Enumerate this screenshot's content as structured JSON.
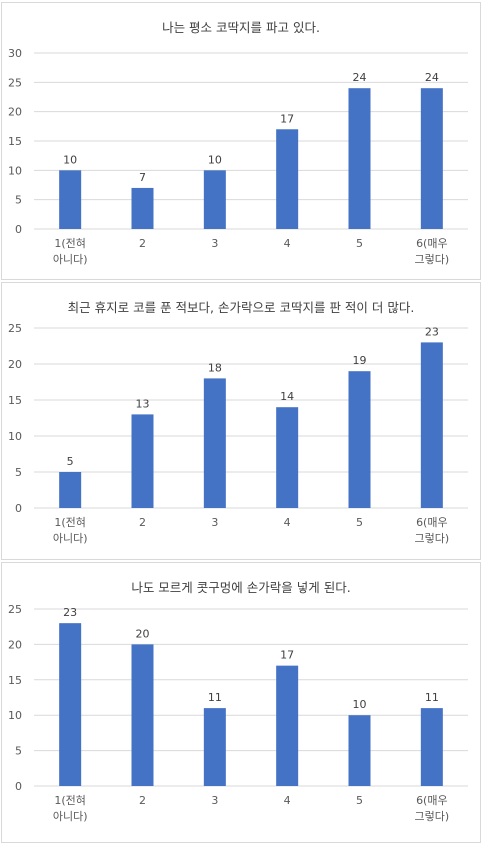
{
  "colors": {
    "bar": "#4472c4",
    "grid": "#d9d9d9",
    "text": "#595959",
    "title": "#404040"
  },
  "chart_data": [
    {
      "type": "bar",
      "title": "나는 평소 코딱지를 파고 있다.",
      "categories": [
        "1(전혀 아니다)",
        "2",
        "3",
        "4",
        "5",
        "6(매우 그렇다)"
      ],
      "category_lines": [
        [
          "1(전혀",
          "아니다)"
        ],
        [
          "2"
        ],
        [
          "3"
        ],
        [
          "4"
        ],
        [
          "5"
        ],
        [
          "6(매우",
          "그렇다)"
        ]
      ],
      "values": [
        10,
        7,
        10,
        17,
        24,
        24
      ],
      "ylim": [
        0,
        30
      ],
      "yticks": [
        0,
        5,
        10,
        15,
        20,
        25,
        30
      ],
      "grid": true,
      "data_labels": true
    },
    {
      "type": "bar",
      "title": "최근 휴지로 코를 푼 적보다, 손가락으로 코딱지를 판 적이 더 많다.",
      "categories": [
        "1(전혀 아니다)",
        "2",
        "3",
        "4",
        "5",
        "6(매우 그렇다)"
      ],
      "category_lines": [
        [
          "1(전혀",
          "아니다)"
        ],
        [
          "2"
        ],
        [
          "3"
        ],
        [
          "4"
        ],
        [
          "5"
        ],
        [
          "6(매우",
          "그렇다)"
        ]
      ],
      "values": [
        5,
        13,
        18,
        14,
        19,
        23
      ],
      "ylim": [
        0,
        25
      ],
      "yticks": [
        0,
        5,
        10,
        15,
        20,
        25
      ],
      "grid": true,
      "data_labels": true
    },
    {
      "type": "bar",
      "title": "나도 모르게 콧구멍에 손가락을 넣게 된다.",
      "categories": [
        "1(전혀 아니다)",
        "2",
        "3",
        "4",
        "5",
        "6(매우 그렇다)"
      ],
      "category_lines": [
        [
          "1(전혀",
          "아니다)"
        ],
        [
          "2"
        ],
        [
          "3"
        ],
        [
          "4"
        ],
        [
          "5"
        ],
        [
          "6(매우",
          "그렇다)"
        ]
      ],
      "values": [
        23,
        20,
        11,
        17,
        10,
        11
      ],
      "ylim": [
        0,
        25
      ],
      "yticks": [
        0,
        5,
        10,
        15,
        20,
        25
      ],
      "grid": true,
      "data_labels": true
    }
  ]
}
